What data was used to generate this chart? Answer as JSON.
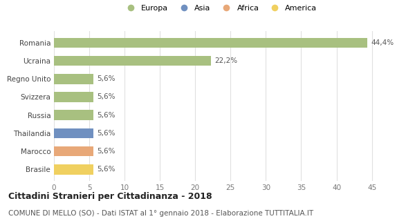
{
  "categories": [
    "Brasile",
    "Marocco",
    "Thailandia",
    "Russia",
    "Svizzera",
    "Regno Unito",
    "Ucraina",
    "Romania"
  ],
  "values": [
    5.6,
    5.6,
    5.6,
    5.6,
    5.6,
    5.6,
    22.2,
    44.4
  ],
  "colors": [
    "#f0d060",
    "#e8a878",
    "#7090c0",
    "#a8c080",
    "#a8c080",
    "#a8c080",
    "#a8c080",
    "#a8c080"
  ],
  "labels": [
    "5,6%",
    "5,6%",
    "5,6%",
    "5,6%",
    "5,6%",
    "5,6%",
    "22,2%",
    "44,4%"
  ],
  "legend": [
    {
      "label": "Europa",
      "color": "#a8c080"
    },
    {
      "label": "Asia",
      "color": "#7090c0"
    },
    {
      "label": "Africa",
      "color": "#e8a878"
    },
    {
      "label": "America",
      "color": "#f0d060"
    }
  ],
  "xlim": [
    0,
    47
  ],
  "xticks": [
    0,
    5,
    10,
    15,
    20,
    25,
    30,
    35,
    40,
    45
  ],
  "title": "Cittadini Stranieri per Cittadinanza - 2018",
  "subtitle": "COMUNE DI MELLO (SO) - Dati ISTAT al 1° gennaio 2018 - Elaborazione TUTTITALIA.IT",
  "background_color": "#ffffff",
  "grid_color": "#e0e0e0",
  "bar_height": 0.55,
  "label_fontsize": 7.5,
  "title_fontsize": 9,
  "subtitle_fontsize": 7.5
}
